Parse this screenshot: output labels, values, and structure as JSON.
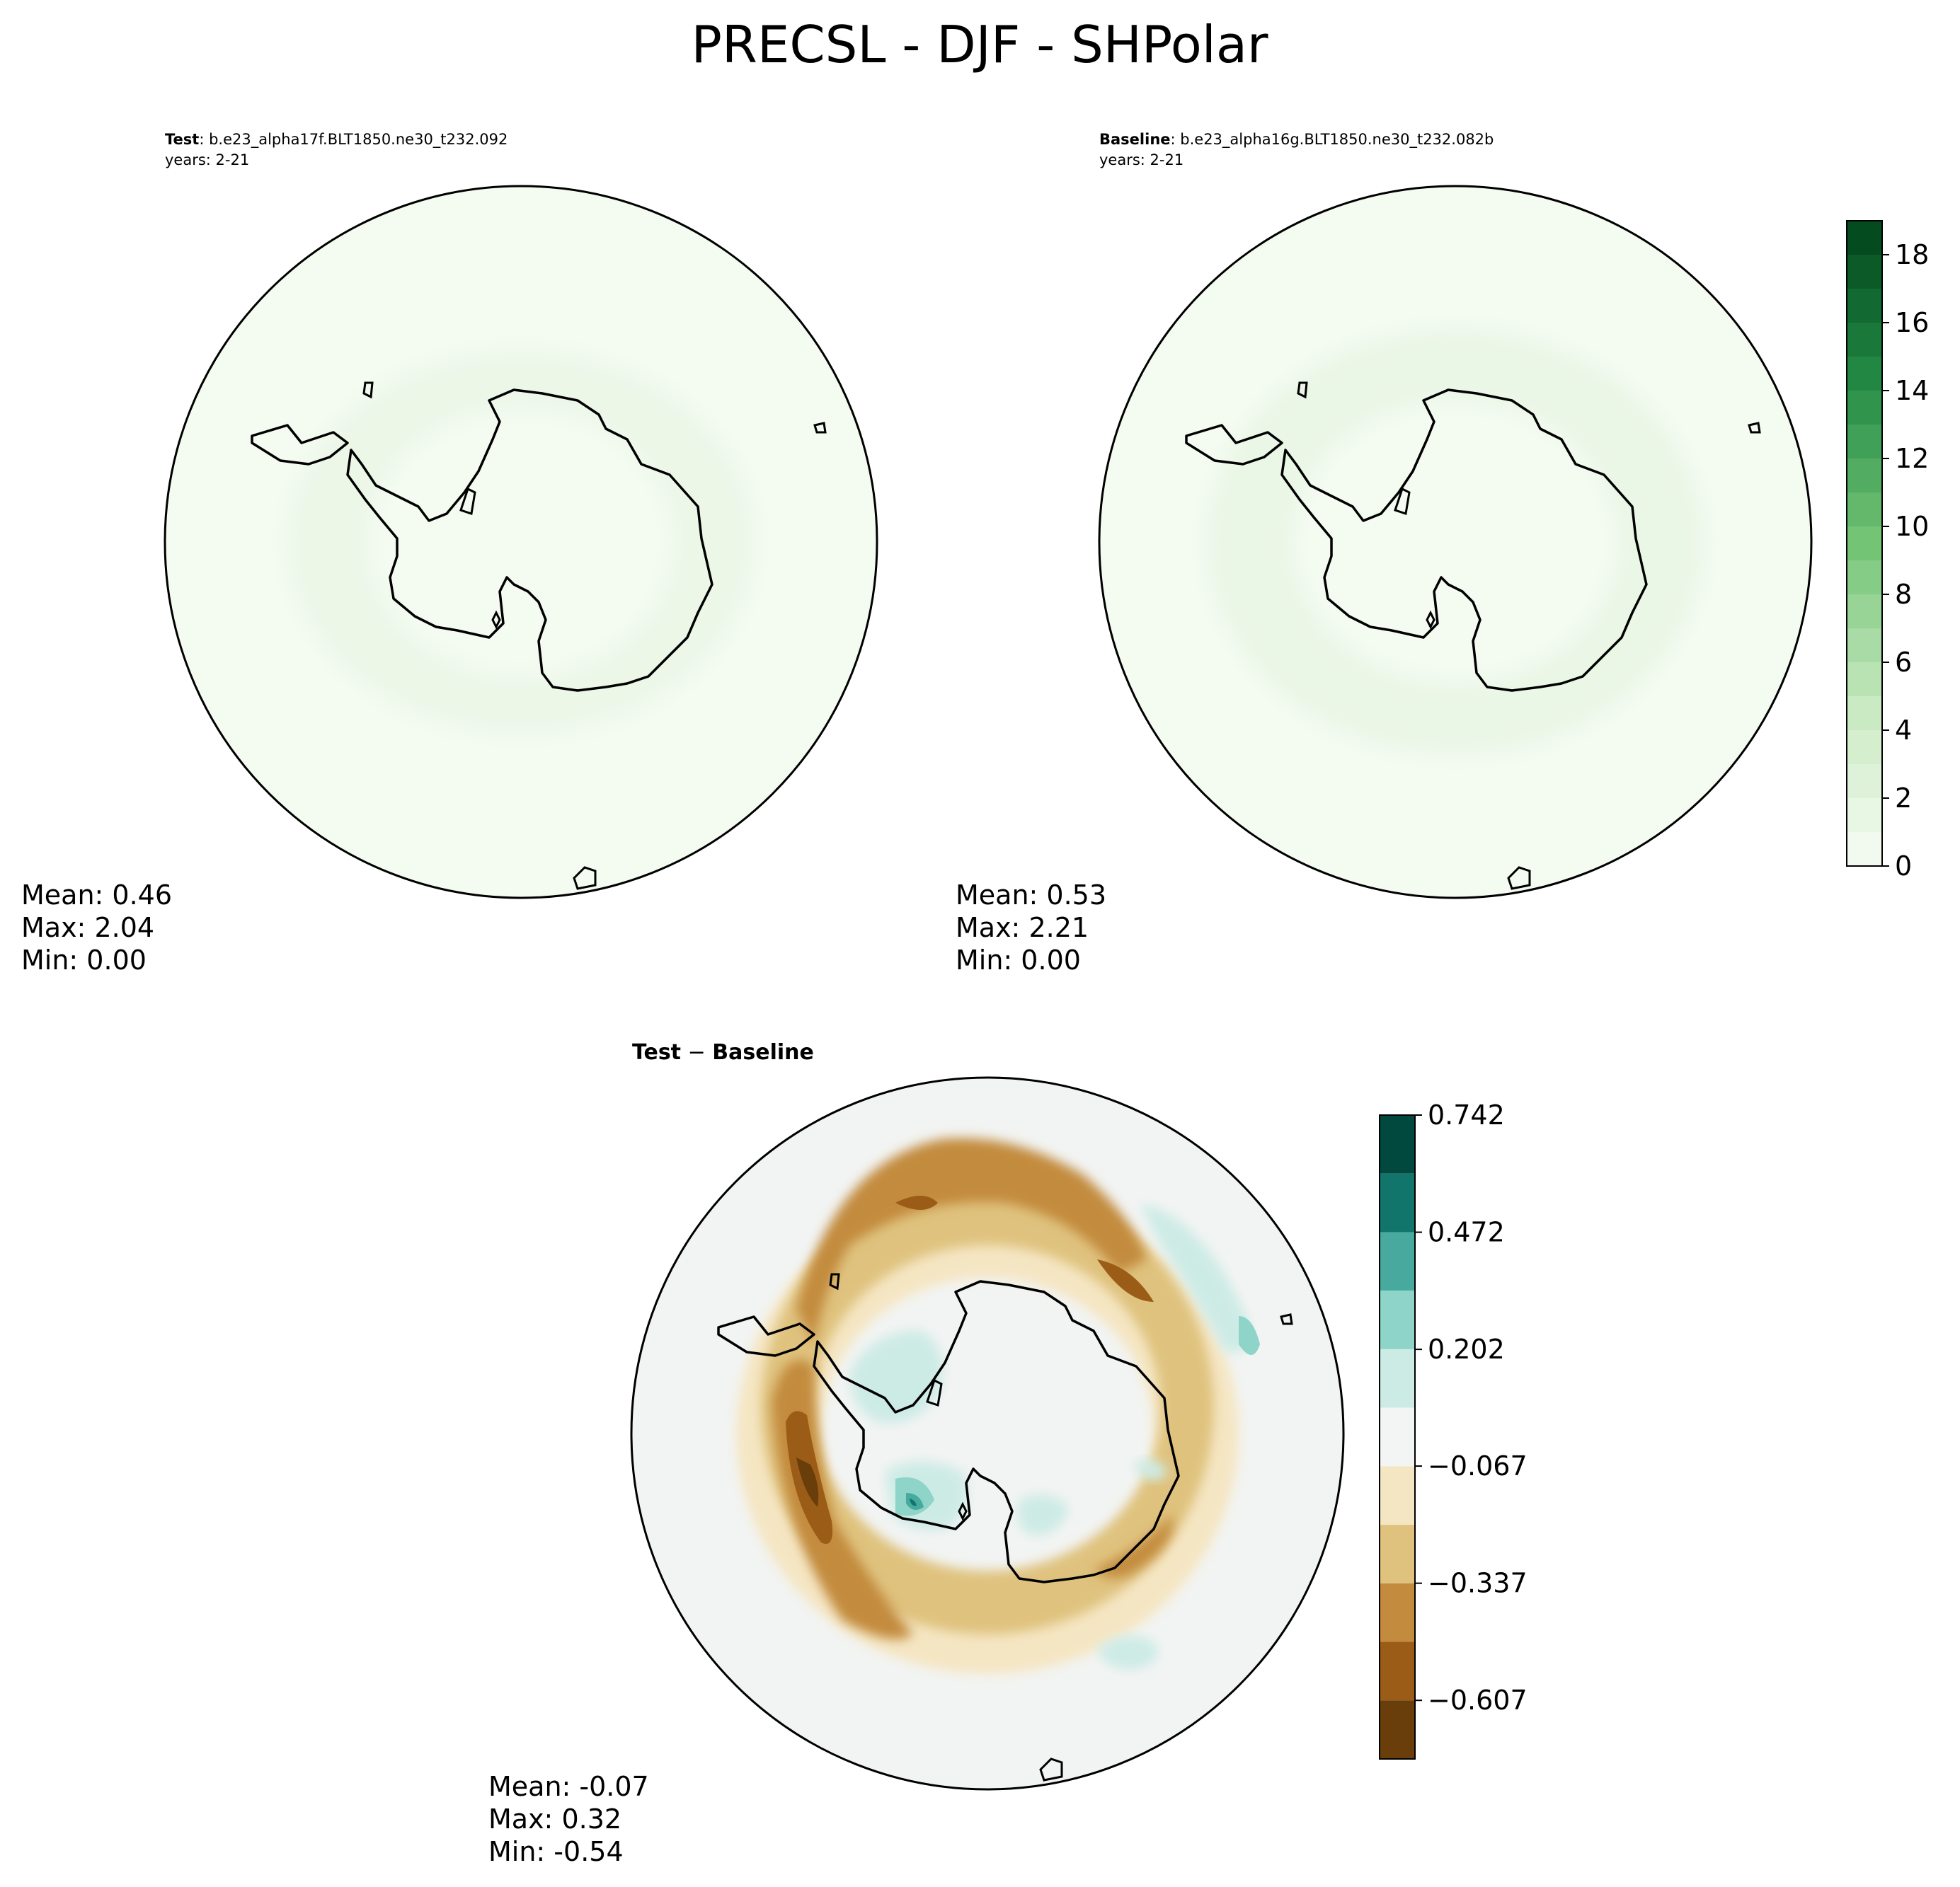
{
  "figure": {
    "title": "PRECSL - DJF - SHPolar"
  },
  "panels": [
    {
      "bold_label": "Test",
      "case_text": ": b.e23_alpha17f.BLT1850.ne30_t232.092",
      "years_text": "years: 2-21",
      "stats": {
        "mean": "Mean:  0.46",
        "max": "Max:  2.04",
        "min": "Min:  0.00"
      }
    },
    {
      "bold_label": "Baseline",
      "case_text": ": b.e23_alpha16g.BLT1850.ne30_t232.082b",
      "years_text": "years: 2-21",
      "stats": {
        "mean": "Mean:  0.53",
        "max": "Max:  2.21",
        "min": "Min:  0.00"
      }
    },
    {
      "title_parts": [
        "Test",
        "Baseline"
      ],
      "stats": {
        "mean": "Mean: -0.07",
        "max": "Max:  0.32",
        "min": "Min: -0.54"
      }
    }
  ],
  "chart_data": [
    {
      "type": "heatmap",
      "projection": "south-polar-stereographic",
      "panel": "Test",
      "mean": 0.46,
      "max": 2.04,
      "min": 0.0,
      "colormap": "Greens",
      "colorbar": {
        "ticks": [
          "0",
          "2",
          "4",
          "6",
          "8",
          "10",
          "12",
          "14",
          "16",
          "18"
        ],
        "range": [
          0,
          19
        ],
        "levels": 19
      }
    },
    {
      "type": "heatmap",
      "projection": "south-polar-stereographic",
      "panel": "Baseline",
      "mean": 0.53,
      "max": 2.21,
      "min": 0.0,
      "colormap": "Greens"
    },
    {
      "type": "heatmap",
      "projection": "south-polar-stereographic",
      "panel": "Test − Baseline",
      "mean": -0.07,
      "max": 0.32,
      "min": -0.54,
      "colormap": "BrBG",
      "colorbar": {
        "ticks": [
          "0.742",
          "0.472",
          "0.202",
          "−0.067",
          "−0.337",
          "−0.607"
        ],
        "range": [
          -0.742,
          0.742
        ],
        "bands": 11,
        "colors_top_to_bottom": [
          "#01493f",
          "#11756c",
          "#48a99e",
          "#8ed4c8",
          "#cdebe5",
          "#f3f5f4",
          "#f5e6c3",
          "#dfc27e",
          "#c38b3d",
          "#9b5c17",
          "#693e0a"
        ]
      }
    }
  ]
}
